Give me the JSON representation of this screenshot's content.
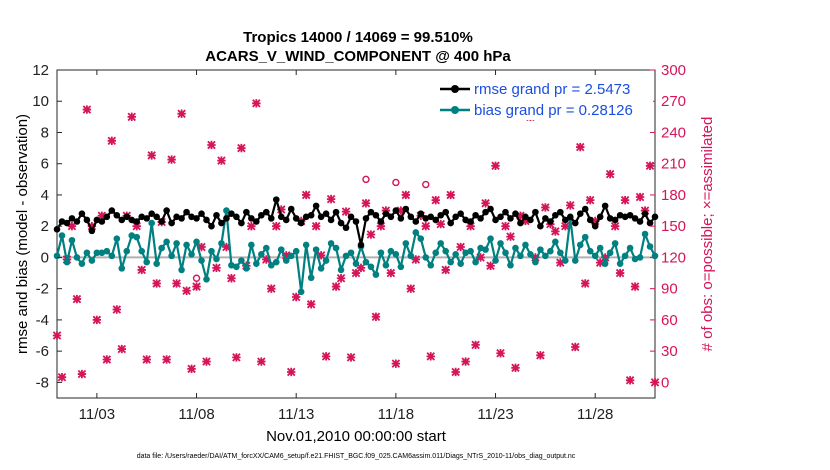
{
  "chart_data": {
    "type": "line",
    "title": "Tropics 14000 / 14069 = 99.510%",
    "subtitle": "ACARS_V_WIND_COMPONENT @ 400 hPa",
    "xlabel": "Nov.01,2010 00:00:00 start",
    "ylabel": "rmse and bias (model - observation)",
    "ylabel_right": "# of obs: o=possible; ×=assimilated",
    "xlim": [
      0.5,
      30.5
    ],
    "ylim": [
      -9,
      12
    ],
    "ylim_right": [
      -15,
      300
    ],
    "x_ticks": [
      2.5,
      7.5,
      12.5,
      17.5,
      22.5,
      27.5
    ],
    "x_tick_labels": [
      "11/03",
      "11/08",
      "11/13",
      "11/18",
      "11/23",
      "11/28"
    ],
    "y_ticks": [
      -8,
      -6,
      -4,
      -2,
      0,
      2,
      4,
      6,
      8,
      10,
      12
    ],
    "y_tick_labels": [
      "-8",
      "-6",
      "-4",
      "-2",
      "0",
      "2",
      "4",
      "6",
      "8",
      "10",
      "12"
    ],
    "y_right_ticks": [
      0,
      30,
      60,
      90,
      120,
      150,
      180,
      210,
      240,
      270,
      300
    ],
    "y_right_tick_labels": [
      "0",
      "30",
      "60",
      "90",
      "120",
      "150",
      "180",
      "210",
      "240",
      "270",
      "300"
    ],
    "grid": false,
    "legend_position": "top-right",
    "colors": {
      "rmse": "#000000",
      "bias": "#008080",
      "obs": "#d6145a",
      "zero_line": "#b0b0b0",
      "legend_text": "#1a4ee0"
    },
    "series": [
      {
        "name": "rmse grand pr = 2.5473",
        "axis": "left",
        "x": [
          0.5,
          0.75,
          1.0,
          1.25,
          1.5,
          1.75,
          2.0,
          2.25,
          2.5,
          2.75,
          3.0,
          3.25,
          3.5,
          3.75,
          4.0,
          4.25,
          4.5,
          4.75,
          5.0,
          5.25,
          5.5,
          5.75,
          6.0,
          6.25,
          6.5,
          6.75,
          7.0,
          7.25,
          7.5,
          7.75,
          8.0,
          8.25,
          8.5,
          8.75,
          9.0,
          9.25,
          9.5,
          9.75,
          10.0,
          10.25,
          10.5,
          10.75,
          11.0,
          11.25,
          11.5,
          11.75,
          12.0,
          12.25,
          12.5,
          12.75,
          13.0,
          13.25,
          13.5,
          13.75,
          14.0,
          14.25,
          14.5,
          14.75,
          15.0,
          15.25,
          15.5,
          15.75,
          16.0,
          16.25,
          16.5,
          16.75,
          17.0,
          17.25,
          17.5,
          17.75,
          18.0,
          18.25,
          18.5,
          18.75,
          19.0,
          19.25,
          19.5,
          19.75,
          20.0,
          20.25,
          20.5,
          20.75,
          21.0,
          21.25,
          21.5,
          21.75,
          22.0,
          22.25,
          22.5,
          22.75,
          23.0,
          23.25,
          23.5,
          23.75,
          24.0,
          24.25,
          24.5,
          24.75,
          25.0,
          25.25,
          25.5,
          25.75,
          26.0,
          26.25,
          26.5,
          26.75,
          27.0,
          27.25,
          27.5,
          27.75,
          28.0,
          28.25,
          28.5,
          28.75,
          29.0,
          29.25,
          29.5,
          29.75,
          30.0,
          30.25,
          30.5
        ],
        "values": [
          1.8,
          2.3,
          2.2,
          2.5,
          2.3,
          2.8,
          2.4,
          1.7,
          2.4,
          2.3,
          2.6,
          3.0,
          2.7,
          2.4,
          2.6,
          2.4,
          2.3,
          2.6,
          2.5,
          2.8,
          2.6,
          2.3,
          3.0,
          2.2,
          2.6,
          2.5,
          2.9,
          2.6,
          2.5,
          2.8,
          2.4,
          2.0,
          2.7,
          2.2,
          2.5,
          2.8,
          2.6,
          2.2,
          2.9,
          2.5,
          2.3,
          2.7,
          2.9,
          2.5,
          3.7,
          2.6,
          2.4,
          3.1,
          2.5,
          2.2,
          2.6,
          2.7,
          3.3,
          2.6,
          2.8,
          2.4,
          2.9,
          2.2,
          1.9,
          2.6,
          2.3,
          0.8,
          2.5,
          2.9,
          2.7,
          2.3,
          2.8,
          2.6,
          3.0,
          2.5,
          3.1,
          2.6,
          2.3,
          2.8,
          2.5,
          2.6,
          2.4,
          2.7,
          2.9,
          2.2,
          2.6,
          2.8,
          2.4,
          2.3,
          2.7,
          2.5,
          2.9,
          3.1,
          2.4,
          2.6,
          2.9,
          2.5,
          2.8,
          2.2,
          2.6,
          2.4,
          2.9,
          2.0,
          2.5,
          2.3,
          2.7,
          2.9,
          2.4,
          2.6,
          2.2,
          2.8,
          3.1,
          2.4,
          2.0,
          2.6,
          3.3,
          2.5,
          2.4,
          2.7,
          2.6,
          2.7,
          2.5,
          2.3,
          2.8,
          2.2,
          2.6
        ]
      },
      {
        "name": "bias grand pr = 0.28126",
        "axis": "left",
        "x": [
          0.5,
          0.75,
          1.0,
          1.25,
          1.5,
          1.75,
          2.0,
          2.25,
          2.5,
          2.75,
          3.0,
          3.25,
          3.5,
          3.75,
          4.0,
          4.25,
          4.5,
          4.75,
          5.0,
          5.25,
          5.5,
          5.75,
          6.0,
          6.25,
          6.5,
          6.75,
          7.0,
          7.25,
          7.5,
          7.75,
          8.0,
          8.25,
          8.5,
          8.75,
          9.0,
          9.25,
          9.5,
          9.75,
          10.0,
          10.25,
          10.5,
          10.75,
          11.0,
          11.25,
          11.5,
          11.75,
          12.0,
          12.25,
          12.5,
          12.75,
          13.0,
          13.25,
          13.5,
          13.75,
          14.0,
          14.25,
          14.5,
          14.75,
          15.0,
          15.25,
          15.5,
          15.75,
          16.0,
          16.25,
          16.5,
          16.75,
          17.0,
          17.25,
          17.5,
          17.75,
          18.0,
          18.25,
          18.5,
          18.75,
          19.0,
          19.25,
          19.5,
          19.75,
          20.0,
          20.25,
          20.5,
          20.75,
          21.0,
          21.25,
          21.5,
          21.75,
          22.0,
          22.25,
          22.5,
          22.75,
          23.0,
          23.25,
          23.5,
          23.75,
          24.0,
          24.25,
          24.5,
          24.75,
          25.0,
          25.25,
          25.5,
          25.75,
          26.0,
          26.25,
          26.5,
          26.75,
          27.0,
          27.25,
          27.5,
          27.75,
          28.0,
          28.25,
          28.5,
          28.75,
          29.0,
          29.25,
          29.5,
          29.75,
          30.0,
          30.25,
          30.5
        ],
        "values": [
          0.1,
          1.4,
          -0.3,
          1.1,
          0.0,
          -0.4,
          0.3,
          -0.2,
          0.3,
          0.3,
          0.4,
          0.1,
          1.2,
          -0.7,
          0.4,
          1.4,
          1.3,
          0.4,
          -0.3,
          2.2,
          -0.4,
          0.6,
          1.0,
          0.1,
          0.9,
          -0.8,
          0.8,
          0.2,
          1.0,
          -0.2,
          -1.4,
          0.4,
          -0.1,
          0.9,
          3.0,
          -0.5,
          -0.6,
          -0.2,
          -0.7,
          0.8,
          -0.4,
          0.2,
          0.6,
          -0.5,
          -0.3,
          0.5,
          -0.2,
          0.1,
          0.4,
          -2.2,
          0.8,
          -1.3,
          0.5,
          -0.7,
          -0.2,
          0.9,
          0.6,
          -0.8,
          0.1,
          0.3,
          -0.4,
          0.7,
          -0.3,
          -0.6,
          -1.1,
          0.3,
          -0.5,
          0.4,
          0.2,
          -0.6,
          0.9,
          0.1,
          1.6,
          1.2,
          0.0,
          -0.5,
          0.3,
          0.9,
          0.4,
          -0.3,
          0.2,
          -0.4,
          0.3,
          0.4,
          -0.3,
          0.6,
          0.5,
          1.2,
          -0.2,
          0.9,
          0.3,
          -0.5,
          0.6,
          0.1,
          0.8,
          0.2,
          -0.3,
          0.5,
          0.1,
          0.4,
          1.0,
          0.3,
          -0.2,
          2.5,
          -0.2,
          0.8,
          1.3,
          0.4,
          0.1,
          0.6,
          -0.4,
          0.3,
          0.9,
          -0.4,
          0.1,
          0.6,
          -0.1,
          0.0,
          1.5,
          0.7,
          0.1
        ]
      },
      {
        "name": "# of obs assimilated",
        "axis": "right",
        "x": [
          0.5,
          0.75,
          1.0,
          1.25,
          1.5,
          1.75,
          2.0,
          2.25,
          2.5,
          2.75,
          3.0,
          3.25,
          3.5,
          3.75,
          4.0,
          4.25,
          4.5,
          4.75,
          5.0,
          5.25,
          5.5,
          5.75,
          6.0,
          6.25,
          6.5,
          6.75,
          7.0,
          7.25,
          7.5,
          7.75,
          8.0,
          8.25,
          8.5,
          8.75,
          9.0,
          9.25,
          9.5,
          9.75,
          10.0,
          10.25,
          10.5,
          10.75,
          11.0,
          11.25,
          11.5,
          11.75,
          12.0,
          12.25,
          12.5,
          12.75,
          13.0,
          13.25,
          13.5,
          13.75,
          14.0,
          14.25,
          14.5,
          14.75,
          15.0,
          15.25,
          15.5,
          15.75,
          16.0,
          16.25,
          16.5,
          16.75,
          17.0,
          17.25,
          17.5,
          17.75,
          18.0,
          18.25,
          18.5,
          18.75,
          19.0,
          19.25,
          19.5,
          19.75,
          20.0,
          20.25,
          20.5,
          20.75,
          21.0,
          21.25,
          21.5,
          21.75,
          22.0,
          22.25,
          22.5,
          22.75,
          23.0,
          23.25,
          23.5,
          23.75,
          24.0,
          24.25,
          24.5,
          24.75,
          25.0,
          25.25,
          25.5,
          25.75,
          26.0,
          26.25,
          26.5,
          26.75,
          27.0,
          27.25,
          27.5,
          27.75,
          28.0,
          28.25,
          28.5,
          28.75,
          29.0,
          29.25,
          29.5,
          29.75,
          30.0,
          30.25,
          30.5
        ],
        "values": [
          45,
          5,
          118,
          150,
          80,
          8,
          262,
          150,
          60,
          160,
          22,
          232,
          70,
          32,
          160,
          255,
          150,
          108,
          22,
          218,
          95,
          154,
          22,
          214,
          95,
          258,
          88,
          13,
          92,
          130,
          20,
          228,
          110,
          213,
          130,
          100,
          24,
          225,
          112,
          150,
          268,
          20,
          118,
          90,
          150,
          166,
          122,
          10,
          82,
          155,
          180,
          75,
          150,
          122,
          25,
          176,
          92,
          100,
          164,
          24,
          105,
          110,
          172,
          142,
          63,
          150,
          165,
          105,
          18,
          165,
          180,
          90,
          118,
          160,
          150,
          25,
          175,
          152,
          108,
          180,
          10,
          130,
          20,
          150,
          36,
          120,
          172,
          112,
          208,
          28,
          150,
          140,
          14,
          160,
          155,
          255,
          120,
          26,
          168,
          152,
          145,
          115,
          150,
          170,
          34,
          226,
          95,
          175,
          155,
          115,
          120,
          200,
          150,
          105,
          175,
          2,
          92,
          178,
          165,
          208,
          0
        ]
      }
    ],
    "possible_only": [
      {
        "x": 7.5,
        "value": 100
      },
      {
        "x": 16.0,
        "value": 195
      },
      {
        "x": 17.5,
        "value": 192
      },
      {
        "x": 19.0,
        "value": 190
      }
    ],
    "legend": [
      {
        "label": "rmse grand pr = 2.5473"
      },
      {
        "label": "bias grand pr = 0.28126"
      }
    ]
  },
  "footnote": "data file: /Users/raeder/DAI/ATM_forcXX/CAM6_setup/f.e21.FHIST_BGC.f09_025.CAM6assim.011/Diags_NTrS_2010-11/obs_diag_output.nc"
}
